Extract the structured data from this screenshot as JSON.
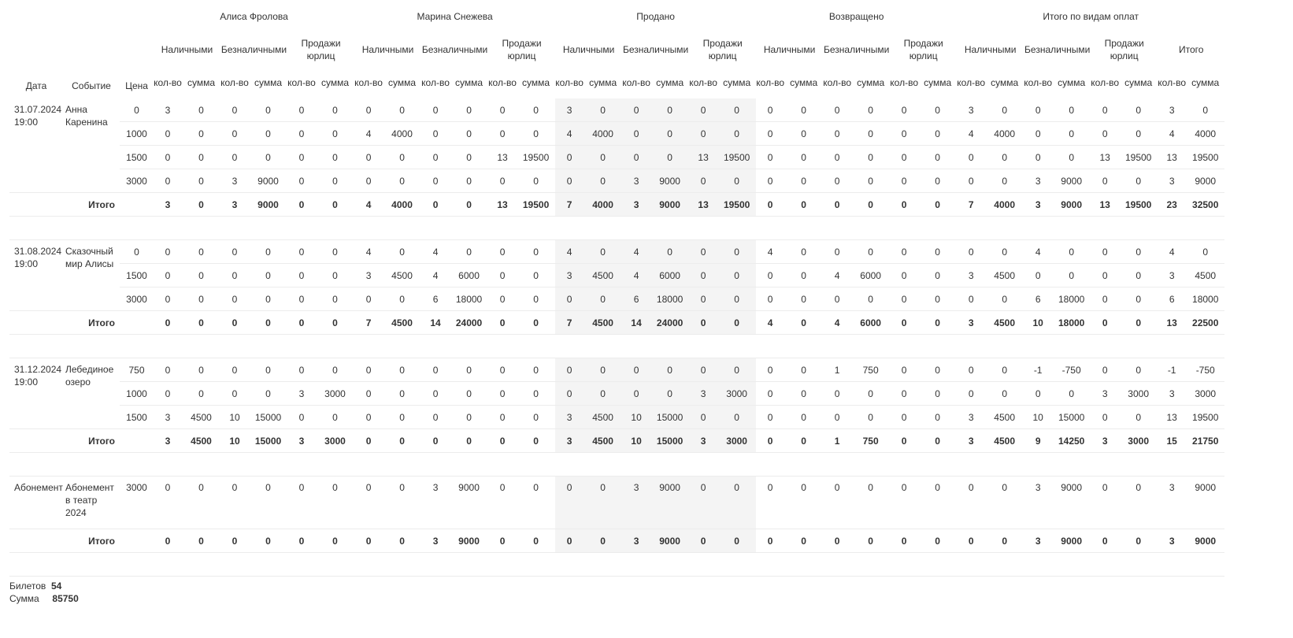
{
  "header": {
    "date": "Дата",
    "event": "Событие",
    "price": "Цена",
    "groups": [
      {
        "title": "Алиса Фролова",
        "subs": [
          "Наличными",
          "Безналичными",
          "Продажи юрлиц"
        ]
      },
      {
        "title": "Марина Снежева",
        "subs": [
          "Наличными",
          "Безналичными",
          "Продажи юрлиц"
        ]
      },
      {
        "title": "Продано",
        "subs": [
          "Наличными",
          "Безналичными",
          "Продажи юрлиц"
        ],
        "shaded": true
      },
      {
        "title": "Возвращено",
        "subs": [
          "Наличными",
          "Безналичными",
          "Продажи юрлиц"
        ]
      },
      {
        "title": "Итого по видам оплат",
        "subs": [
          "Наличными",
          "Безналичными",
          "Продажи юрлиц",
          "Итого"
        ]
      }
    ],
    "qty": "кол-во",
    "sum": "сумма"
  },
  "total_label": "Итого",
  "shade_color": "#f4f4f4",
  "sections": [
    {
      "date": "31.07.2024 19:00",
      "event": "Анна Каренина",
      "rows": [
        {
          "price": "0",
          "values": [
            3,
            0,
            0,
            0,
            0,
            0,
            0,
            0,
            0,
            0,
            0,
            0,
            3,
            0,
            0,
            0,
            0,
            0,
            0,
            0,
            0,
            0,
            0,
            0,
            3,
            0,
            0,
            0,
            0,
            0,
            3,
            0
          ]
        },
        {
          "price": "1000",
          "values": [
            0,
            0,
            0,
            0,
            0,
            0,
            4,
            4000,
            0,
            0,
            0,
            0,
            4,
            4000,
            0,
            0,
            0,
            0,
            0,
            0,
            0,
            0,
            0,
            0,
            4,
            4000,
            0,
            0,
            0,
            0,
            4,
            4000
          ]
        },
        {
          "price": "1500",
          "values": [
            0,
            0,
            0,
            0,
            0,
            0,
            0,
            0,
            0,
            0,
            13,
            19500,
            0,
            0,
            0,
            0,
            13,
            19500,
            0,
            0,
            0,
            0,
            0,
            0,
            0,
            0,
            0,
            0,
            13,
            19500,
            13,
            19500
          ]
        },
        {
          "price": "3000",
          "values": [
            0,
            0,
            3,
            9000,
            0,
            0,
            0,
            0,
            0,
            0,
            0,
            0,
            0,
            0,
            3,
            9000,
            0,
            0,
            0,
            0,
            0,
            0,
            0,
            0,
            0,
            0,
            3,
            9000,
            0,
            0,
            3,
            9000
          ]
        }
      ],
      "total": [
        3,
        0,
        3,
        9000,
        0,
        0,
        4,
        4000,
        0,
        0,
        13,
        19500,
        7,
        4000,
        3,
        9000,
        13,
        19500,
        0,
        0,
        0,
        0,
        0,
        0,
        7,
        4000,
        3,
        9000,
        13,
        19500,
        23,
        32500
      ]
    },
    {
      "date": "31.08.2024 19:00",
      "event": "Сказочный мир Алисы",
      "rows": [
        {
          "price": "0",
          "values": [
            0,
            0,
            0,
            0,
            0,
            0,
            4,
            0,
            4,
            0,
            0,
            0,
            4,
            0,
            4,
            0,
            0,
            0,
            4,
            0,
            0,
            0,
            0,
            0,
            0,
            0,
            4,
            0,
            0,
            0,
            4,
            0
          ]
        },
        {
          "price": "1500",
          "values": [
            0,
            0,
            0,
            0,
            0,
            0,
            3,
            4500,
            4,
            6000,
            0,
            0,
            3,
            4500,
            4,
            6000,
            0,
            0,
            0,
            0,
            4,
            6000,
            0,
            0,
            3,
            4500,
            0,
            0,
            0,
            0,
            3,
            4500
          ]
        },
        {
          "price": "3000",
          "values": [
            0,
            0,
            0,
            0,
            0,
            0,
            0,
            0,
            6,
            18000,
            0,
            0,
            0,
            0,
            6,
            18000,
            0,
            0,
            0,
            0,
            0,
            0,
            0,
            0,
            0,
            0,
            6,
            18000,
            0,
            0,
            6,
            18000
          ]
        }
      ],
      "total": [
        0,
        0,
        0,
        0,
        0,
        0,
        7,
        4500,
        14,
        24000,
        0,
        0,
        7,
        4500,
        14,
        24000,
        0,
        0,
        4,
        0,
        4,
        6000,
        0,
        0,
        3,
        4500,
        10,
        18000,
        0,
        0,
        13,
        22500
      ]
    },
    {
      "date": "31.12.2024 19:00",
      "event": "Лебединое озеро",
      "rows": [
        {
          "price": "750",
          "values": [
            0,
            0,
            0,
            0,
            0,
            0,
            0,
            0,
            0,
            0,
            0,
            0,
            0,
            0,
            0,
            0,
            0,
            0,
            0,
            0,
            1,
            750,
            0,
            0,
            0,
            0,
            -1,
            -750,
            0,
            0,
            -1,
            -750
          ]
        },
        {
          "price": "1000",
          "values": [
            0,
            0,
            0,
            0,
            3,
            3000,
            0,
            0,
            0,
            0,
            0,
            0,
            0,
            0,
            0,
            0,
            3,
            3000,
            0,
            0,
            0,
            0,
            0,
            0,
            0,
            0,
            0,
            0,
            3,
            3000,
            3,
            3000
          ]
        },
        {
          "price": "1500",
          "values": [
            3,
            4500,
            10,
            15000,
            0,
            0,
            0,
            0,
            0,
            0,
            0,
            0,
            3,
            4500,
            10,
            15000,
            0,
            0,
            0,
            0,
            0,
            0,
            0,
            0,
            3,
            4500,
            10,
            15000,
            0,
            0,
            13,
            19500
          ]
        }
      ],
      "total": [
        3,
        4500,
        10,
        15000,
        3,
        3000,
        0,
        0,
        0,
        0,
        0,
        0,
        3,
        4500,
        10,
        15000,
        3,
        3000,
        0,
        0,
        1,
        750,
        0,
        0,
        3,
        4500,
        9,
        14250,
        3,
        3000,
        15,
        21750
      ]
    },
    {
      "date": "Абонемент",
      "event": "Абонемент в театр 2024",
      "rows": [
        {
          "price": "3000",
          "values": [
            0,
            0,
            0,
            0,
            0,
            0,
            0,
            0,
            3,
            9000,
            0,
            0,
            0,
            0,
            3,
            9000,
            0,
            0,
            0,
            0,
            0,
            0,
            0,
            0,
            0,
            0,
            3,
            9000,
            0,
            0,
            3,
            9000
          ]
        }
      ],
      "total": [
        0,
        0,
        0,
        0,
        0,
        0,
        0,
        0,
        3,
        9000,
        0,
        0,
        0,
        0,
        3,
        9000,
        0,
        0,
        0,
        0,
        0,
        0,
        0,
        0,
        0,
        0,
        3,
        9000,
        0,
        0,
        3,
        9000
      ]
    }
  ],
  "summary": {
    "tickets_label": "Билетов",
    "tickets_value": "54",
    "sum_label": "Сумма",
    "sum_value": "85750"
  }
}
